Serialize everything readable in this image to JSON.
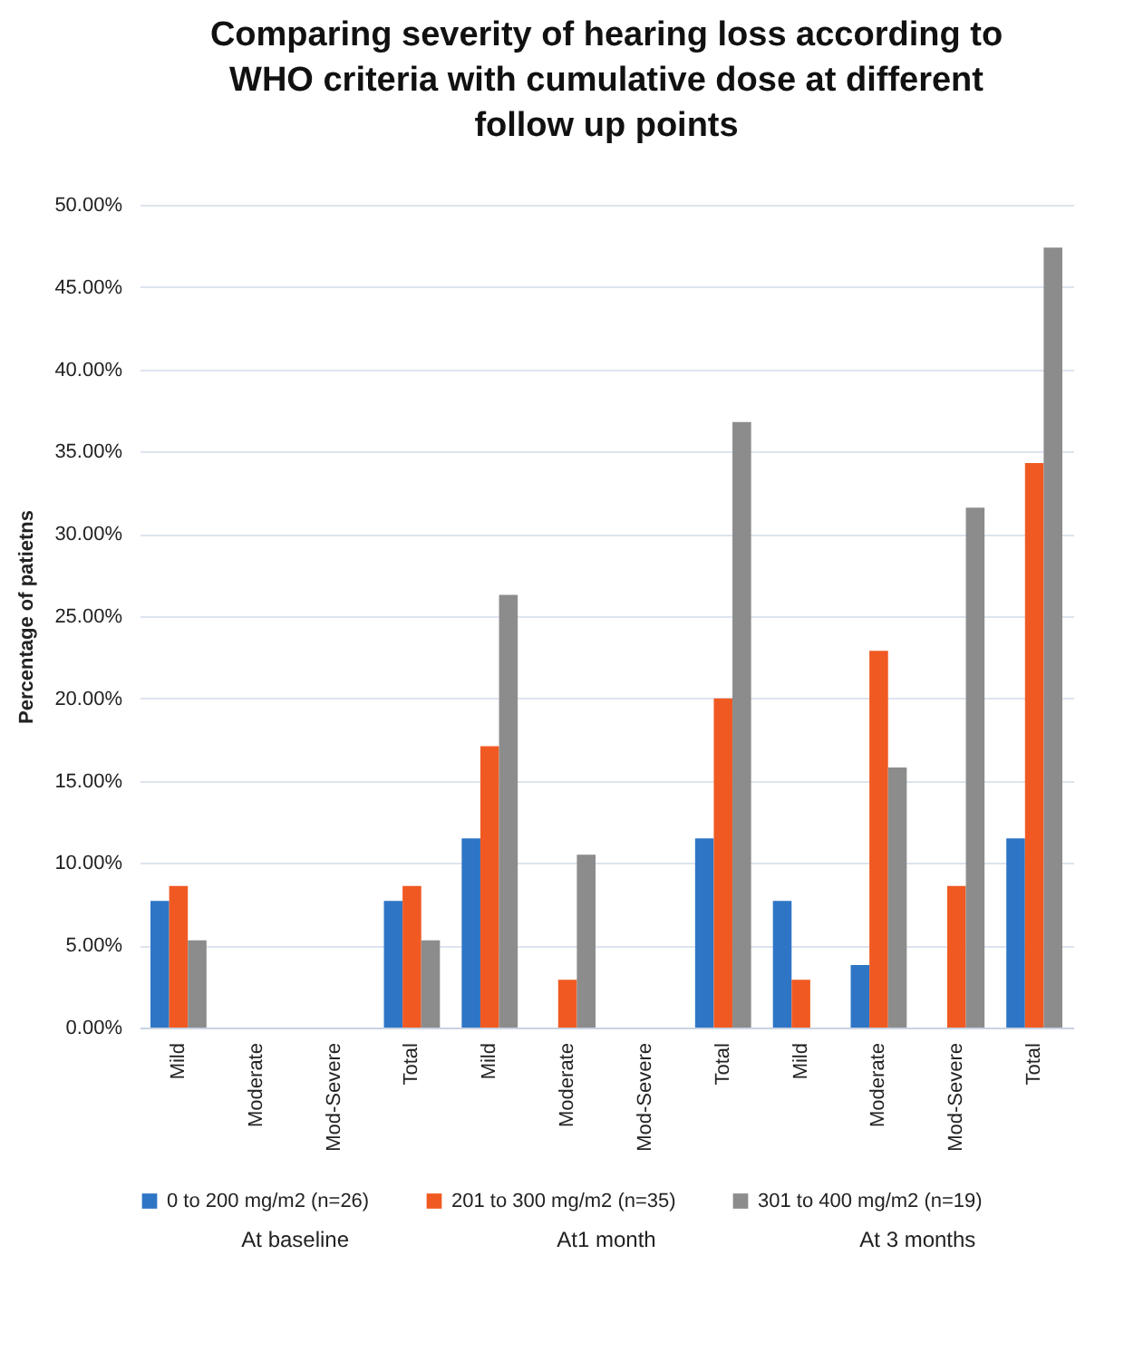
{
  "chart_data": {
    "type": "bar",
    "title": "Comparing severity of hearing loss according to WHO criteria with cumulative dose at different follow up points",
    "ylabel": "Percentage of patietns",
    "categories": [
      "Mild",
      "Moderate",
      "Mod-Severe",
      "Total",
      "Mild",
      "Moderate",
      "Mod-Severe",
      "Total",
      "Mild",
      "Moderate",
      "Mod-Severe",
      "Total"
    ],
    "annotations": [
      "At baseline",
      "At1 month",
      "At 3 months"
    ],
    "series": [
      {
        "name": "0 to 200 mg/m2 (n=26)",
        "color": "#2e75c6",
        "values": [
          7.7,
          0,
          0,
          7.7,
          11.5,
          0,
          0,
          11.5,
          7.7,
          3.8,
          0,
          11.5
        ]
      },
      {
        "name": "201 to 300 mg/m2 (n=35)",
        "color": "#f05a22",
        "values": [
          8.6,
          0,
          0,
          8.6,
          17.1,
          2.9,
          0,
          20.0,
          2.9,
          22.9,
          8.6,
          34.3
        ]
      },
      {
        "name": "301  to 400 mg/m2 (n=19)",
        "color": "#8c8c8c",
        "values": [
          5.3,
          0,
          0,
          5.3,
          26.3,
          10.5,
          0,
          36.8,
          0,
          15.8,
          31.6,
          47.4
        ]
      }
    ],
    "ylim": [
      0,
      50
    ],
    "yticks": [
      {
        "value": 0,
        "label": "0.00%"
      },
      {
        "value": 5,
        "label": "5.00%"
      },
      {
        "value": 10,
        "label": "10.00%"
      },
      {
        "value": 15,
        "label": "15.00%"
      },
      {
        "value": 20,
        "label": "20.00%"
      },
      {
        "value": 25,
        "label": "25.00%"
      },
      {
        "value": 30,
        "label": "30.00%"
      },
      {
        "value": 35,
        "label": "35.00%"
      },
      {
        "value": 40,
        "label": "40.00%"
      },
      {
        "value": 45,
        "label": "45.00%"
      },
      {
        "value": 50,
        "label": "50.00%"
      }
    ],
    "grid": "y",
    "legend": "bottom"
  }
}
